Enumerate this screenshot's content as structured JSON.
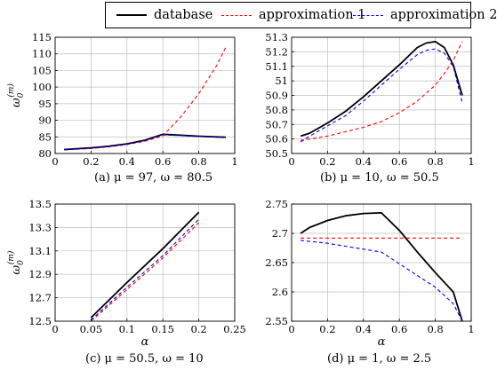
{
  "legend": {
    "items": [
      {
        "label": "database",
        "color": "#000000",
        "dash": "solid"
      },
      {
        "label": "approximation 1",
        "color": "#ff0000",
        "dash": "dashed"
      },
      {
        "label": "approximation 2",
        "color": "#0000ff",
        "dash": "dashed"
      }
    ]
  },
  "captions": {
    "a": "(a) μ = 97, ω = 80.5",
    "b": "(b) μ = 10, ω = 50.5",
    "c": "(c) μ = 50.5, ω = 10",
    "d": "(d) μ = 1, ω = 2.5"
  },
  "chart_data": [
    {
      "type": "line",
      "id": "a",
      "ylabel": "ω0(m)",
      "xlabel": "",
      "xlim": [
        0,
        1
      ],
      "ylim": [
        80,
        115
      ],
      "xticks": [
        "0",
        "0.2",
        "0.4",
        "0.6",
        "0.8",
        "1"
      ],
      "yticks": [
        "80",
        "85",
        "90",
        "95",
        "100",
        "105",
        "110",
        "115"
      ],
      "grid": true,
      "series": [
        {
          "name": "database",
          "color": "#000000",
          "dash": "solid",
          "x": [
            0.05,
            0.2,
            0.3,
            0.4,
            0.5,
            0.6,
            0.7,
            0.8,
            0.95
          ],
          "y": [
            81.2,
            81.7,
            82.2,
            82.9,
            84.0,
            85.8,
            85.5,
            85.2,
            84.9
          ]
        },
        {
          "name": "approximation 1",
          "color": "#ff0000",
          "dash": "dashed",
          "x": [
            0.05,
            0.2,
            0.3,
            0.4,
            0.5,
            0.6,
            0.7,
            0.8,
            0.9,
            0.95
          ],
          "y": [
            81.1,
            81.5,
            82.0,
            82.7,
            83.7,
            85.3,
            91.0,
            98.0,
            106.5,
            112.0
          ]
        },
        {
          "name": "approximation 2",
          "color": "#0000ff",
          "dash": "dashed",
          "x": [
            0.05,
            0.2,
            0.3,
            0.4,
            0.5,
            0.6,
            0.7,
            0.8,
            0.95
          ],
          "y": [
            81.1,
            81.6,
            82.1,
            82.8,
            83.9,
            85.6,
            85.4,
            85.1,
            84.8
          ]
        }
      ]
    },
    {
      "type": "line",
      "id": "b",
      "ylabel": "",
      "xlabel": "",
      "xlim": [
        0,
        1
      ],
      "ylim": [
        50.5,
        51.3
      ],
      "xticks": [
        "0",
        "0.2",
        "0.4",
        "0.6",
        "0.8",
        "1"
      ],
      "yticks": [
        "50.5",
        "50.6",
        "50.7",
        "50.8",
        "50.9",
        "51",
        "51.1",
        "51.2",
        "51.3"
      ],
      "grid": true,
      "series": [
        {
          "name": "database",
          "color": "#000000",
          "dash": "solid",
          "x": [
            0.05,
            0.1,
            0.2,
            0.3,
            0.4,
            0.5,
            0.6,
            0.7,
            0.75,
            0.8,
            0.85,
            0.9,
            0.95
          ],
          "y": [
            50.62,
            50.64,
            50.71,
            50.79,
            50.89,
            51.0,
            51.11,
            51.23,
            51.26,
            51.27,
            51.23,
            51.11,
            50.9
          ]
        },
        {
          "name": "approximation 1",
          "color": "#ff0000",
          "dash": "dashed",
          "x": [
            0.05,
            0.2,
            0.3,
            0.4,
            0.5,
            0.6,
            0.7,
            0.8,
            0.85,
            0.9,
            0.95
          ],
          "y": [
            50.59,
            50.62,
            50.65,
            50.68,
            50.72,
            50.78,
            50.86,
            50.97,
            51.05,
            51.14,
            51.27
          ]
        },
        {
          "name": "approximation 2",
          "color": "#0000ff",
          "dash": "dashed",
          "x": [
            0.05,
            0.1,
            0.2,
            0.3,
            0.4,
            0.5,
            0.6,
            0.7,
            0.75,
            0.8,
            0.85,
            0.9,
            0.95
          ],
          "y": [
            50.58,
            50.62,
            50.69,
            50.76,
            50.86,
            50.97,
            51.08,
            51.18,
            51.21,
            51.22,
            51.19,
            51.1,
            50.85
          ]
        }
      ]
    },
    {
      "type": "line",
      "id": "c",
      "ylabel": "ω0(m)",
      "xlabel": "α",
      "xlim": [
        0,
        0.25
      ],
      "ylim": [
        12.5,
        13.5
      ],
      "xticks": [
        "0",
        "0.05",
        "0.1",
        "0.15",
        "0.2",
        "0.25"
      ],
      "yticks": [
        "12.5",
        "12.7",
        "12.9",
        "13.1",
        "13.3",
        "13.5"
      ],
      "grid": true,
      "series": [
        {
          "name": "database",
          "color": "#000000",
          "dash": "solid",
          "x": [
            0.05,
            0.1,
            0.15,
            0.2
          ],
          "y": [
            12.53,
            12.83,
            13.12,
            13.43
          ]
        },
        {
          "name": "approximation 1",
          "color": "#ff0000",
          "dash": "dashed",
          "x": [
            0.05,
            0.1,
            0.15,
            0.2
          ],
          "y": [
            12.5,
            12.77,
            13.04,
            13.34
          ]
        },
        {
          "name": "approximation 2",
          "color": "#0000ff",
          "dash": "dashed",
          "x": [
            0.05,
            0.1,
            0.15,
            0.2
          ],
          "y": [
            12.51,
            12.79,
            13.06,
            13.37
          ]
        }
      ]
    },
    {
      "type": "line",
      "id": "d",
      "ylabel": "",
      "xlabel": "α",
      "xlim": [
        0,
        1
      ],
      "ylim": [
        2.55,
        2.75
      ],
      "xticks": [
        "0",
        "0.2",
        "0.4",
        "0.6",
        "0.8",
        "1"
      ],
      "yticks": [
        "2.55",
        "2.6",
        "2.65",
        "2.7",
        "2.75"
      ],
      "grid": true,
      "series": [
        {
          "name": "database",
          "color": "#000000",
          "dash": "solid",
          "x": [
            0.05,
            0.1,
            0.2,
            0.3,
            0.4,
            0.5,
            0.6,
            0.7,
            0.8,
            0.9,
            0.95
          ],
          "y": [
            2.7,
            2.71,
            2.722,
            2.73,
            2.734,
            2.735,
            2.705,
            2.668,
            2.633,
            2.6,
            2.55
          ]
        },
        {
          "name": "approximation 1",
          "color": "#ff0000",
          "dash": "dashed",
          "x": [
            0.05,
            0.95
          ],
          "y": [
            2.692,
            2.692
          ]
        },
        {
          "name": "approximation 2",
          "color": "#0000ff",
          "dash": "dashed",
          "x": [
            0.05,
            0.2,
            0.3,
            0.4,
            0.5,
            0.6,
            0.7,
            0.8,
            0.9,
            0.95
          ],
          "y": [
            2.688,
            2.683,
            2.678,
            2.673,
            2.668,
            2.648,
            2.628,
            2.608,
            2.58,
            2.55
          ]
        }
      ]
    }
  ]
}
